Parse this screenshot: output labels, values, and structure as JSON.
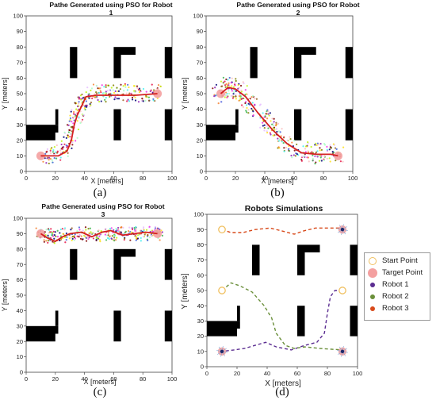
{
  "panels": [
    {
      "id": "a",
      "title_line1": "Pathe Generated using PSO for Robot",
      "title_line2": "1",
      "sublabel": "(a)",
      "xlabel": "X [meters]",
      "ylabel": "Y [meters]"
    },
    {
      "id": "b",
      "title_line1": "Pathe Generated using PSO for Robot",
      "title_line2": "2",
      "sublabel": "(b)",
      "xlabel": "X [meters]",
      "ylabel": "Y [meters]"
    },
    {
      "id": "c",
      "title_line1": "Pathe Generated using PSO for Robot",
      "title_line2": "3",
      "sublabel": "(c)",
      "xlabel": "X [meters]",
      "ylabel": "Y [meters]"
    },
    {
      "id": "d",
      "title_line1": "Robots Simulations",
      "title_line2": "",
      "sublabel": "(d)",
      "xlabel": "X [meters]",
      "ylabel": "Y [meters]"
    }
  ],
  "legend": [
    {
      "label": "Start Point",
      "color": "#f0c060",
      "style": "ring"
    },
    {
      "label": "Target Point",
      "color": "#f4a0a0",
      "style": "filled"
    },
    {
      "label": "Robot 1",
      "color": "#5b2d91",
      "style": "dot"
    },
    {
      "label": "Robot 2",
      "color": "#6a8f3a",
      "style": "dot"
    },
    {
      "label": "Robot 3",
      "color": "#d84a1b",
      "style": "dot"
    }
  ],
  "chart_data": [
    {
      "type": "scatter",
      "panel": "a",
      "title": "Pathe Generated using PSO for Robot 1",
      "xlabel": "X [meters]",
      "ylabel": "Y [meters]",
      "xlim": [
        0,
        100
      ],
      "ylim": [
        0,
        100
      ],
      "xticks": [
        0,
        20,
        40,
        60,
        80,
        100
      ],
      "yticks": [
        0,
        10,
        20,
        30,
        40,
        50,
        60,
        70,
        80,
        90,
        100
      ],
      "start": [
        10,
        10
      ],
      "target": [
        90,
        50
      ],
      "path": [
        [
          10,
          10
        ],
        [
          22,
          10
        ],
        [
          28,
          13
        ],
        [
          31,
          20
        ],
        [
          33,
          30
        ],
        [
          35,
          36
        ],
        [
          38,
          42
        ],
        [
          41,
          48
        ],
        [
          48,
          49
        ],
        [
          60,
          49
        ],
        [
          75,
          49
        ],
        [
          90,
          50
        ]
      ],
      "path_color": "#d42020",
      "particle_band": [
        [
          12,
          10
        ],
        [
          25,
          12
        ],
        [
          31,
          24
        ],
        [
          34,
          34
        ],
        [
          38,
          44
        ],
        [
          45,
          50
        ],
        [
          60,
          51
        ],
        [
          75,
          50
        ],
        [
          92,
          50
        ]
      ],
      "particle_spread": 5,
      "particle_count": 320
    },
    {
      "type": "scatter",
      "panel": "b",
      "title": "Pathe Generated using PSO for Robot 2",
      "xlabel": "X [meters]",
      "ylabel": "Y [meters]",
      "xlim": [
        0,
        100
      ],
      "ylim": [
        0,
        100
      ],
      "xticks": [
        0,
        20,
        40,
        60,
        80,
        100
      ],
      "yticks": [
        0,
        10,
        20,
        30,
        40,
        50,
        60,
        70,
        80,
        90,
        100
      ],
      "start": [
        10,
        50
      ],
      "target": [
        90,
        10
      ],
      "path": [
        [
          10,
          50
        ],
        [
          15,
          54
        ],
        [
          20,
          53
        ],
        [
          27,
          48
        ],
        [
          35,
          38
        ],
        [
          45,
          27
        ],
        [
          55,
          18
        ],
        [
          65,
          12
        ],
        [
          75,
          11
        ],
        [
          85,
          11
        ],
        [
          90,
          10
        ]
      ],
      "path_color": "#d42020",
      "particle_band": [
        [
          8,
          50
        ],
        [
          15,
          55
        ],
        [
          25,
          50
        ],
        [
          35,
          38
        ],
        [
          45,
          27
        ],
        [
          55,
          17
        ],
        [
          68,
          12
        ],
        [
          80,
          11
        ],
        [
          92,
          12
        ]
      ],
      "particle_spread": 6,
      "particle_count": 320
    },
    {
      "type": "scatter",
      "panel": "c",
      "title": "Pathe Generated using PSO for Robot 3",
      "xlabel": "X [meters]",
      "ylabel": "Y [meters]",
      "xlim": [
        0,
        100
      ],
      "ylim": [
        0,
        100
      ],
      "xticks": [
        0,
        20,
        40,
        60,
        80,
        100
      ],
      "yticks": [
        0,
        10,
        20,
        30,
        40,
        50,
        60,
        70,
        80,
        90,
        100
      ],
      "start": [
        10,
        90
      ],
      "target": [
        90,
        90
      ],
      "path": [
        [
          10,
          90
        ],
        [
          15,
          87
        ],
        [
          20,
          85
        ],
        [
          25,
          88
        ],
        [
          30,
          90
        ],
        [
          38,
          91
        ],
        [
          45,
          88
        ],
        [
          52,
          91
        ],
        [
          58,
          92
        ],
        [
          66,
          89
        ],
        [
          74,
          90
        ],
        [
          82,
          91
        ],
        [
          90,
          90
        ]
      ],
      "path_color": "#d42020",
      "particle_band": [
        [
          8,
          90
        ],
        [
          20,
          88
        ],
        [
          35,
          90
        ],
        [
          50,
          89
        ],
        [
          65,
          90
        ],
        [
          80,
          90
        ],
        [
          92,
          90
        ]
      ],
      "particle_spread": 4,
      "particle_count": 320
    },
    {
      "type": "line",
      "panel": "d",
      "title": "Robots Simulations",
      "xlabel": "X [meters]",
      "ylabel": "Y [meters]",
      "xlim": [
        0,
        100
      ],
      "ylim": [
        0,
        100
      ],
      "xticks": [
        0,
        20,
        40,
        60,
        80,
        100
      ],
      "yticks": [
        0,
        10,
        20,
        30,
        40,
        50,
        60,
        70,
        80,
        90,
        100
      ],
      "starts": [
        [
          10,
          90
        ],
        [
          10,
          50
        ],
        [
          90,
          50
        ]
      ],
      "targets": [
        [
          10,
          10
        ],
        [
          90,
          90
        ],
        [
          90,
          10
        ]
      ],
      "robots_at": [
        [
          10,
          10
        ],
        [
          90,
          90
        ],
        [
          90,
          10
        ]
      ],
      "series": [
        {
          "name": "Robot 1",
          "color": "#5b2d91",
          "points": [
            [
              90,
              50
            ],
            [
              85,
              50
            ],
            [
              82,
              46
            ],
            [
              80,
              35
            ],
            [
              78,
              22
            ],
            [
              73,
              16
            ],
            [
              65,
              14
            ],
            [
              56,
              11
            ],
            [
              46,
              13
            ],
            [
              39,
              16
            ],
            [
              32,
              14
            ],
            [
              25,
              12
            ],
            [
              18,
              11
            ],
            [
              10,
              10
            ]
          ]
        },
        {
          "name": "Robot 2",
          "color": "#6a8f3a",
          "points": [
            [
              10,
              50
            ],
            [
              16,
              55
            ],
            [
              22,
              53
            ],
            [
              30,
              49
            ],
            [
              38,
              40
            ],
            [
              43,
              32
            ],
            [
              46,
              22
            ],
            [
              52,
              14
            ],
            [
              58,
              12
            ],
            [
              65,
              13
            ],
            [
              75,
              12
            ],
            [
              90,
              11
            ]
          ]
        },
        {
          "name": "Robot 3",
          "color": "#d84a1b",
          "points": [
            [
              10,
              90
            ],
            [
              16,
              88
            ],
            [
              24,
              88
            ],
            [
              32,
              90
            ],
            [
              42,
              91
            ],
            [
              50,
              89
            ],
            [
              58,
              87
            ],
            [
              64,
              89
            ],
            [
              72,
              91
            ],
            [
              80,
              91
            ],
            [
              90,
              91
            ]
          ]
        }
      ]
    }
  ],
  "obstacles": [
    [
      [
        0,
        20
      ],
      [
        0,
        25
      ],
      [
        20,
        25
      ],
      [
        20,
        20
      ]
    ],
    [
      [
        0,
        25
      ],
      [
        0,
        30
      ],
      [
        22,
        30
      ],
      [
        22,
        25
      ]
    ],
    [
      [
        20,
        30
      ],
      [
        20,
        40
      ],
      [
        22,
        40
      ],
      [
        22,
        30
      ]
    ],
    [
      [
        30,
        60
      ],
      [
        30,
        80
      ],
      [
        35,
        80
      ],
      [
        35,
        60
      ]
    ],
    [
      [
        60,
        80
      ],
      [
        60,
        75
      ],
      [
        75,
        75
      ],
      [
        75,
        80
      ]
    ],
    [
      [
        60,
        60
      ],
      [
        60,
        75
      ],
      [
        65,
        75
      ],
      [
        65,
        60
      ]
    ],
    [
      [
        95,
        60
      ],
      [
        95,
        80
      ],
      [
        100,
        80
      ],
      [
        100,
        60
      ]
    ],
    [
      [
        60,
        20
      ],
      [
        60,
        40
      ],
      [
        65,
        40
      ],
      [
        65,
        20
      ]
    ],
    [
      [
        95,
        20
      ],
      [
        95,
        40
      ],
      [
        100,
        40
      ],
      [
        100,
        20
      ]
    ]
  ],
  "colors": {
    "obstacle": "#000000",
    "start": "#f0c060",
    "target": "#f4a0a0",
    "particle_palette": [
      "#e6194b",
      "#3cb44b",
      "#f58231",
      "#911eb4",
      "#46f0f0",
      "#f032e6",
      "#bcf60c",
      "#4363d8",
      "#ffe119",
      "#9a6324",
      "#800000",
      "#aaffc3",
      "#808000",
      "#000075",
      "#fabebe",
      "#e6beff"
    ]
  }
}
